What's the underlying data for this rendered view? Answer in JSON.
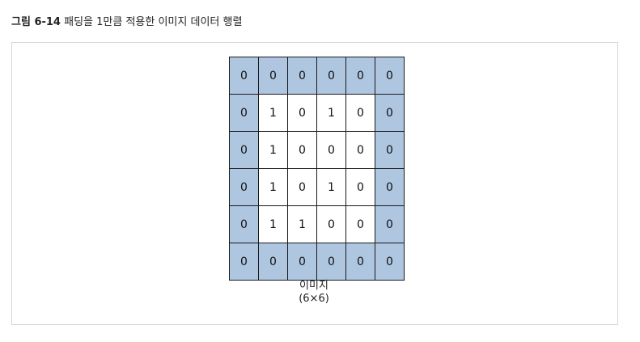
{
  "caption": {
    "label": "그림 6-14",
    "text": "패딩을 1만큼 적용한 이미지 데이터 행렬"
  },
  "matrix": {
    "rows": [
      [
        "0",
        "0",
        "0",
        "0",
        "0",
        "0"
      ],
      [
        "0",
        "1",
        "0",
        "1",
        "0",
        "0"
      ],
      [
        "0",
        "1",
        "0",
        "0",
        "0",
        "0"
      ],
      [
        "0",
        "1",
        "0",
        "1",
        "0",
        "0"
      ],
      [
        "0",
        "1",
        "1",
        "0",
        "0",
        "0"
      ],
      [
        "0",
        "0",
        "0",
        "0",
        "0",
        "0"
      ]
    ],
    "padding": 1,
    "colors": {
      "padding_fill": "#aec6e0",
      "core_fill": "#ffffff",
      "grid_line": "#1a1a1a"
    }
  },
  "image_label": {
    "line1": "이미지",
    "line2": "(6×6)"
  }
}
